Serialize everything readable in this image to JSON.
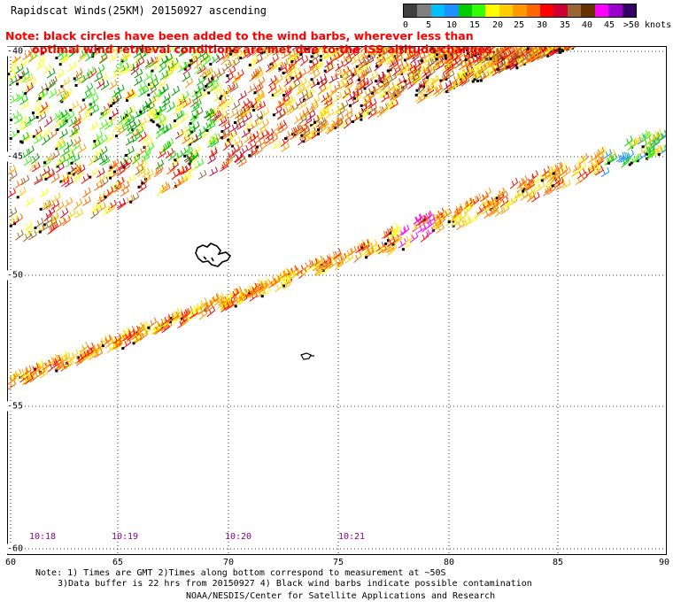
{
  "header": {
    "title": "Rapidscat Winds(25KM) 20150927 ascending",
    "note_line1": "Note: black circles have been added to the wind barbs, wherever less than",
    "note_line2": "optimal wind retrieval conditions are met due to the ISS altitude changes."
  },
  "legend": {
    "labels": [
      "0",
      "5",
      "10",
      "15",
      "20",
      "25",
      "30",
      "35",
      "40",
      "45",
      ">50 knots"
    ],
    "colors": [
      "#404040",
      "#808080",
      "#00bfff",
      "#1e90ff",
      "#00cc00",
      "#33ff00",
      "#ffff00",
      "#ffcc00",
      "#ff9900",
      "#ff6600",
      "#ff0000",
      "#cc0033",
      "#996633",
      "#663300",
      "#ff00ff",
      "#9900cc",
      "#330066"
    ]
  },
  "map": {
    "x_ticks": [
      "60",
      "65",
      "70",
      "75",
      "80",
      "85",
      "90"
    ],
    "y_ticks": [
      "-40",
      "-45",
      "-50",
      "-55",
      "-60"
    ],
    "times": [
      "10:18",
      "10:19",
      "10:20",
      "10:21"
    ]
  },
  "footer": {
    "line1": "Note: 1) Times are GMT 2)Times along bottom correspond to measurement at ~50S",
    "line2": "3)Data buffer is 22 hrs from 20150927 4) Black wind barbs indicate possible contamination",
    "line3": "NOAA/NESDIS/Center for Satellite Applications and Research"
  }
}
